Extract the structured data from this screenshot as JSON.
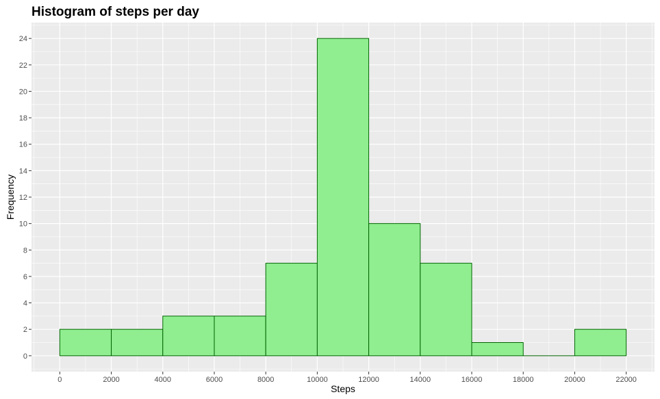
{
  "chart_data": {
    "type": "bar",
    "subtype": "histogram",
    "title": "Histogram of steps per day",
    "xlabel": "Steps",
    "ylabel": "Frequency",
    "bin_width": 2000,
    "bins": [
      {
        "start": 0,
        "end": 2000,
        "count": 2
      },
      {
        "start": 2000,
        "end": 4000,
        "count": 2
      },
      {
        "start": 4000,
        "end": 6000,
        "count": 3
      },
      {
        "start": 6000,
        "end": 8000,
        "count": 3
      },
      {
        "start": 8000,
        "end": 10000,
        "count": 7
      },
      {
        "start": 10000,
        "end": 12000,
        "count": 24
      },
      {
        "start": 12000,
        "end": 14000,
        "count": 10
      },
      {
        "start": 14000,
        "end": 16000,
        "count": 7
      },
      {
        "start": 16000,
        "end": 18000,
        "count": 1
      },
      {
        "start": 18000,
        "end": 20000,
        "count": 0
      },
      {
        "start": 20000,
        "end": 22000,
        "count": 2
      }
    ],
    "xlim": [
      -1100,
      23100
    ],
    "ylim": [
      -1.2,
      25.2
    ],
    "x_ticks": [
      0,
      2000,
      4000,
      6000,
      8000,
      10000,
      12000,
      14000,
      16000,
      18000,
      20000,
      22000
    ],
    "y_ticks": [
      0,
      2,
      4,
      6,
      8,
      10,
      12,
      14,
      16,
      18,
      20,
      22,
      24
    ],
    "grid": true,
    "legend": "none",
    "colors": {
      "bar_fill": "#90EE90",
      "bar_outline": "#006400",
      "panel_background": "#EBEBEB",
      "grid_line": "#FFFFFF",
      "tick_text": "#4D4D4D"
    }
  }
}
